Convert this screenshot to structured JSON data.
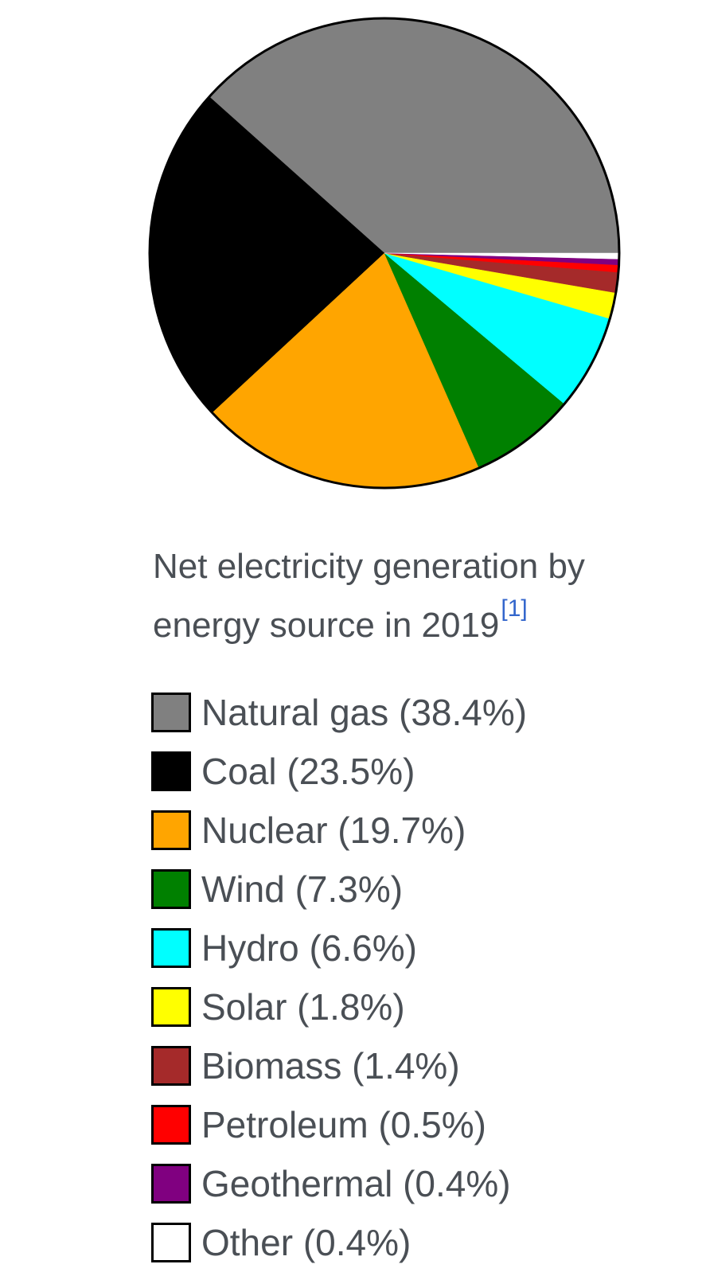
{
  "chart_data": {
    "type": "pie",
    "title": "Net electricity generation by energy source in 2019",
    "title_ref": "[1]",
    "categories": [
      "Natural gas",
      "Coal",
      "Nuclear",
      "Wind",
      "Hydro",
      "Solar",
      "Biomass",
      "Petroleum",
      "Geothermal",
      "Other"
    ],
    "values": [
      38.4,
      23.5,
      19.7,
      7.3,
      6.6,
      1.8,
      1.4,
      0.5,
      0.4,
      0.4
    ],
    "unit": "%",
    "colors": [
      "#808080",
      "#000000",
      "#ffa500",
      "#008000",
      "#00ffff",
      "#ffff00",
      "#a52a2a",
      "#ff0000",
      "#800080",
      "#ffffff"
    ],
    "legend_position": "bottom",
    "legend": [
      {
        "label": "Natural gas (38.4%)",
        "color": "#808080",
        "icon": "natural-gas-swatch"
      },
      {
        "label": "Coal (23.5%)",
        "color": "#000000",
        "icon": "coal-swatch"
      },
      {
        "label": "Nuclear (19.7%)",
        "color": "#ffa500",
        "icon": "nuclear-swatch"
      },
      {
        "label": "Wind (7.3%)",
        "color": "#008000",
        "icon": "wind-swatch"
      },
      {
        "label": "Hydro (6.6%)",
        "color": "#00ffff",
        "icon": "hydro-swatch"
      },
      {
        "label": "Solar (1.8%)",
        "color": "#ffff00",
        "icon": "solar-swatch"
      },
      {
        "label": "Biomass (1.4%)",
        "color": "#a52a2a",
        "icon": "biomass-swatch"
      },
      {
        "label": "Petroleum (0.5%)",
        "color": "#ff0000",
        "icon": "petroleum-swatch"
      },
      {
        "label": "Geothermal (0.4%)",
        "color": "#800080",
        "icon": "geothermal-swatch"
      },
      {
        "label": "Other (0.4%)",
        "color": "#ffffff",
        "icon": "other-swatch"
      }
    ]
  }
}
